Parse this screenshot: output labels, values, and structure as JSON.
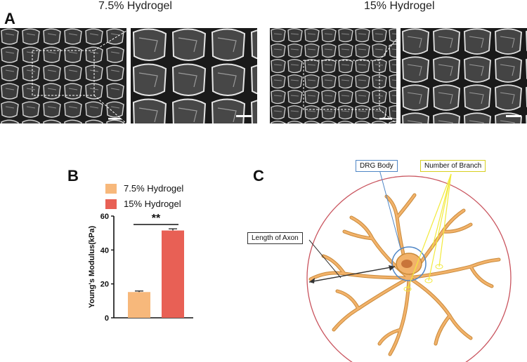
{
  "panel_a": {
    "letter": "A",
    "left_caption": "7.5% Hydrogel",
    "right_caption": "15% Hydrogel"
  },
  "panel_b": {
    "letter": "B",
    "legend": [
      {
        "label": "7.5% Hydrogel",
        "color": "#f7b87b"
      },
      {
        "label": "15% Hydrogel",
        "color": "#e86055"
      }
    ],
    "significance": "**"
  },
  "panel_c": {
    "letter": "C",
    "callouts": {
      "drg_body": "DRG Body",
      "number_of_branch": "Number of Branch",
      "length_of_axon": "Length of Axon"
    },
    "colors": {
      "outer_circle": "#c9545e",
      "neuron": "#f2b26a",
      "neuron_outline": "#c98a3a",
      "body_ring": "#4f86c6",
      "branch_lines": "#f2ea3c",
      "axon_arrow": "#333333"
    }
  },
  "chart_data": {
    "type": "bar",
    "categories": [
      "7.5% Hydrogel",
      "15% Hydrogel"
    ],
    "values": [
      15.2,
      51.5
    ],
    "errors": [
      0.6,
      1.0
    ],
    "colors": [
      "#f7b87b",
      "#e86055"
    ],
    "title": "",
    "xlabel": "",
    "ylabel": "Young's Modulus(kPa)",
    "ylim": [
      0,
      60
    ],
    "yticks": [
      0,
      20,
      40,
      60
    ],
    "grid": false,
    "legend": "top"
  }
}
